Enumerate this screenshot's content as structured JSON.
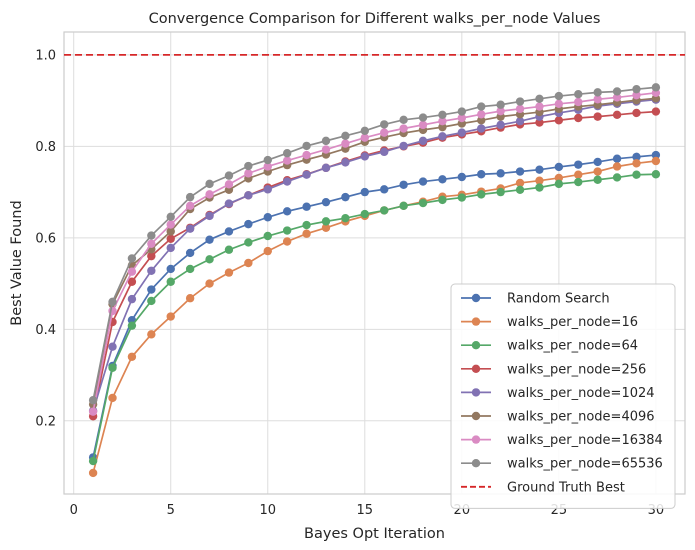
{
  "chart_data": {
    "type": "line",
    "title": "Convergence Comparison for Different walks_per_node Values",
    "xlabel": "Bayes Opt Iteration",
    "ylabel": "Best Value Found",
    "xlim": [
      -0.5,
      31.5
    ],
    "ylim": [
      0.04,
      1.05
    ],
    "x_ticks": [
      0,
      5,
      10,
      15,
      20,
      25,
      30
    ],
    "y_ticks": [
      0.2,
      0.4,
      0.6,
      0.8,
      1.0
    ],
    "x_tick_labels": [
      "0",
      "5",
      "10",
      "15",
      "20",
      "25",
      "30"
    ],
    "y_tick_labels": [
      "0.2",
      "0.4",
      "0.6",
      "0.8",
      "1.0"
    ],
    "grid": true,
    "legend_position": "lower-right",
    "x": [
      1,
      2,
      3,
      4,
      5,
      6,
      7,
      8,
      9,
      10,
      11,
      12,
      13,
      14,
      15,
      16,
      17,
      18,
      19,
      20,
      21,
      22,
      23,
      24,
      25,
      26,
      27,
      28,
      29,
      30
    ],
    "series": [
      {
        "name": "Random Search",
        "color": "#4c72b0",
        "marker": "circle",
        "values": [
          0.12,
          0.32,
          0.42,
          0.487,
          0.532,
          0.567,
          0.596,
          0.614,
          0.63,
          0.645,
          0.658,
          0.668,
          0.678,
          0.689,
          0.7,
          0.706,
          0.716,
          0.723,
          0.728,
          0.733,
          0.739,
          0.741,
          0.745,
          0.749,
          0.755,
          0.76,
          0.766,
          0.773,
          0.777,
          0.781
        ]
      },
      {
        "name": "walks_per_node=16",
        "color": "#dd8452",
        "marker": "circle",
        "values": [
          0.086,
          0.25,
          0.34,
          0.389,
          0.428,
          0.468,
          0.5,
          0.524,
          0.545,
          0.571,
          0.592,
          0.609,
          0.622,
          0.636,
          0.648,
          0.66,
          0.67,
          0.679,
          0.69,
          0.694,
          0.701,
          0.708,
          0.72,
          0.725,
          0.731,
          0.738,
          0.745,
          0.756,
          0.763,
          0.768
        ]
      },
      {
        "name": "walks_per_node=64",
        "color": "#55a868",
        "marker": "circle",
        "values": [
          0.112,
          0.316,
          0.408,
          0.462,
          0.504,
          0.532,
          0.553,
          0.574,
          0.59,
          0.604,
          0.616,
          0.628,
          0.636,
          0.643,
          0.652,
          0.66,
          0.67,
          0.676,
          0.683,
          0.688,
          0.695,
          0.7,
          0.705,
          0.71,
          0.718,
          0.722,
          0.727,
          0.732,
          0.738,
          0.739
        ]
      },
      {
        "name": "walks_per_node=256",
        "color": "#c44e52",
        "marker": "circle",
        "values": [
          0.21,
          0.416,
          0.504,
          0.56,
          0.598,
          0.622,
          0.65,
          0.674,
          0.693,
          0.71,
          0.726,
          0.739,
          0.753,
          0.767,
          0.78,
          0.791,
          0.8,
          0.808,
          0.819,
          0.826,
          0.833,
          0.841,
          0.848,
          0.852,
          0.857,
          0.862,
          0.865,
          0.869,
          0.873,
          0.876
        ]
      },
      {
        "name": "walks_per_node=1024",
        "color": "#8172b3",
        "marker": "circle",
        "values": [
          0.222,
          0.362,
          0.466,
          0.528,
          0.578,
          0.62,
          0.648,
          0.675,
          0.693,
          0.706,
          0.723,
          0.738,
          0.753,
          0.765,
          0.778,
          0.788,
          0.801,
          0.812,
          0.822,
          0.83,
          0.839,
          0.847,
          0.855,
          0.865,
          0.873,
          0.88,
          0.888,
          0.893,
          0.898,
          0.902
        ]
      },
      {
        "name": "walks_per_node=4096",
        "color": "#937860",
        "marker": "circle",
        "values": [
          0.236,
          0.455,
          0.54,
          0.575,
          0.614,
          0.663,
          0.688,
          0.705,
          0.73,
          0.745,
          0.759,
          0.771,
          0.782,
          0.795,
          0.81,
          0.82,
          0.829,
          0.836,
          0.842,
          0.85,
          0.857,
          0.865,
          0.87,
          0.875,
          0.882,
          0.887,
          0.891,
          0.896,
          0.901,
          0.905
        ]
      },
      {
        "name": "walks_per_node=16384",
        "color": "#da8bc3",
        "marker": "circle",
        "values": [
          0.22,
          0.44,
          0.526,
          0.587,
          0.629,
          0.67,
          0.695,
          0.717,
          0.741,
          0.756,
          0.769,
          0.781,
          0.793,
          0.806,
          0.819,
          0.83,
          0.839,
          0.847,
          0.855,
          0.862,
          0.87,
          0.877,
          0.882,
          0.887,
          0.893,
          0.897,
          0.903,
          0.907,
          0.912,
          0.917
        ]
      },
      {
        "name": "walks_per_node=65536",
        "color": "#8c8c8c",
        "marker": "circle",
        "values": [
          0.245,
          0.46,
          0.555,
          0.605,
          0.646,
          0.689,
          0.718,
          0.736,
          0.757,
          0.77,
          0.785,
          0.801,
          0.812,
          0.823,
          0.834,
          0.848,
          0.858,
          0.863,
          0.869,
          0.876,
          0.887,
          0.891,
          0.898,
          0.904,
          0.91,
          0.914,
          0.918,
          0.92,
          0.925,
          0.929
        ]
      }
    ],
    "reference_lines": [
      {
        "name": "Ground Truth Best",
        "y": 1.0,
        "color": "#d62728",
        "style": "dashed"
      }
    ]
  }
}
